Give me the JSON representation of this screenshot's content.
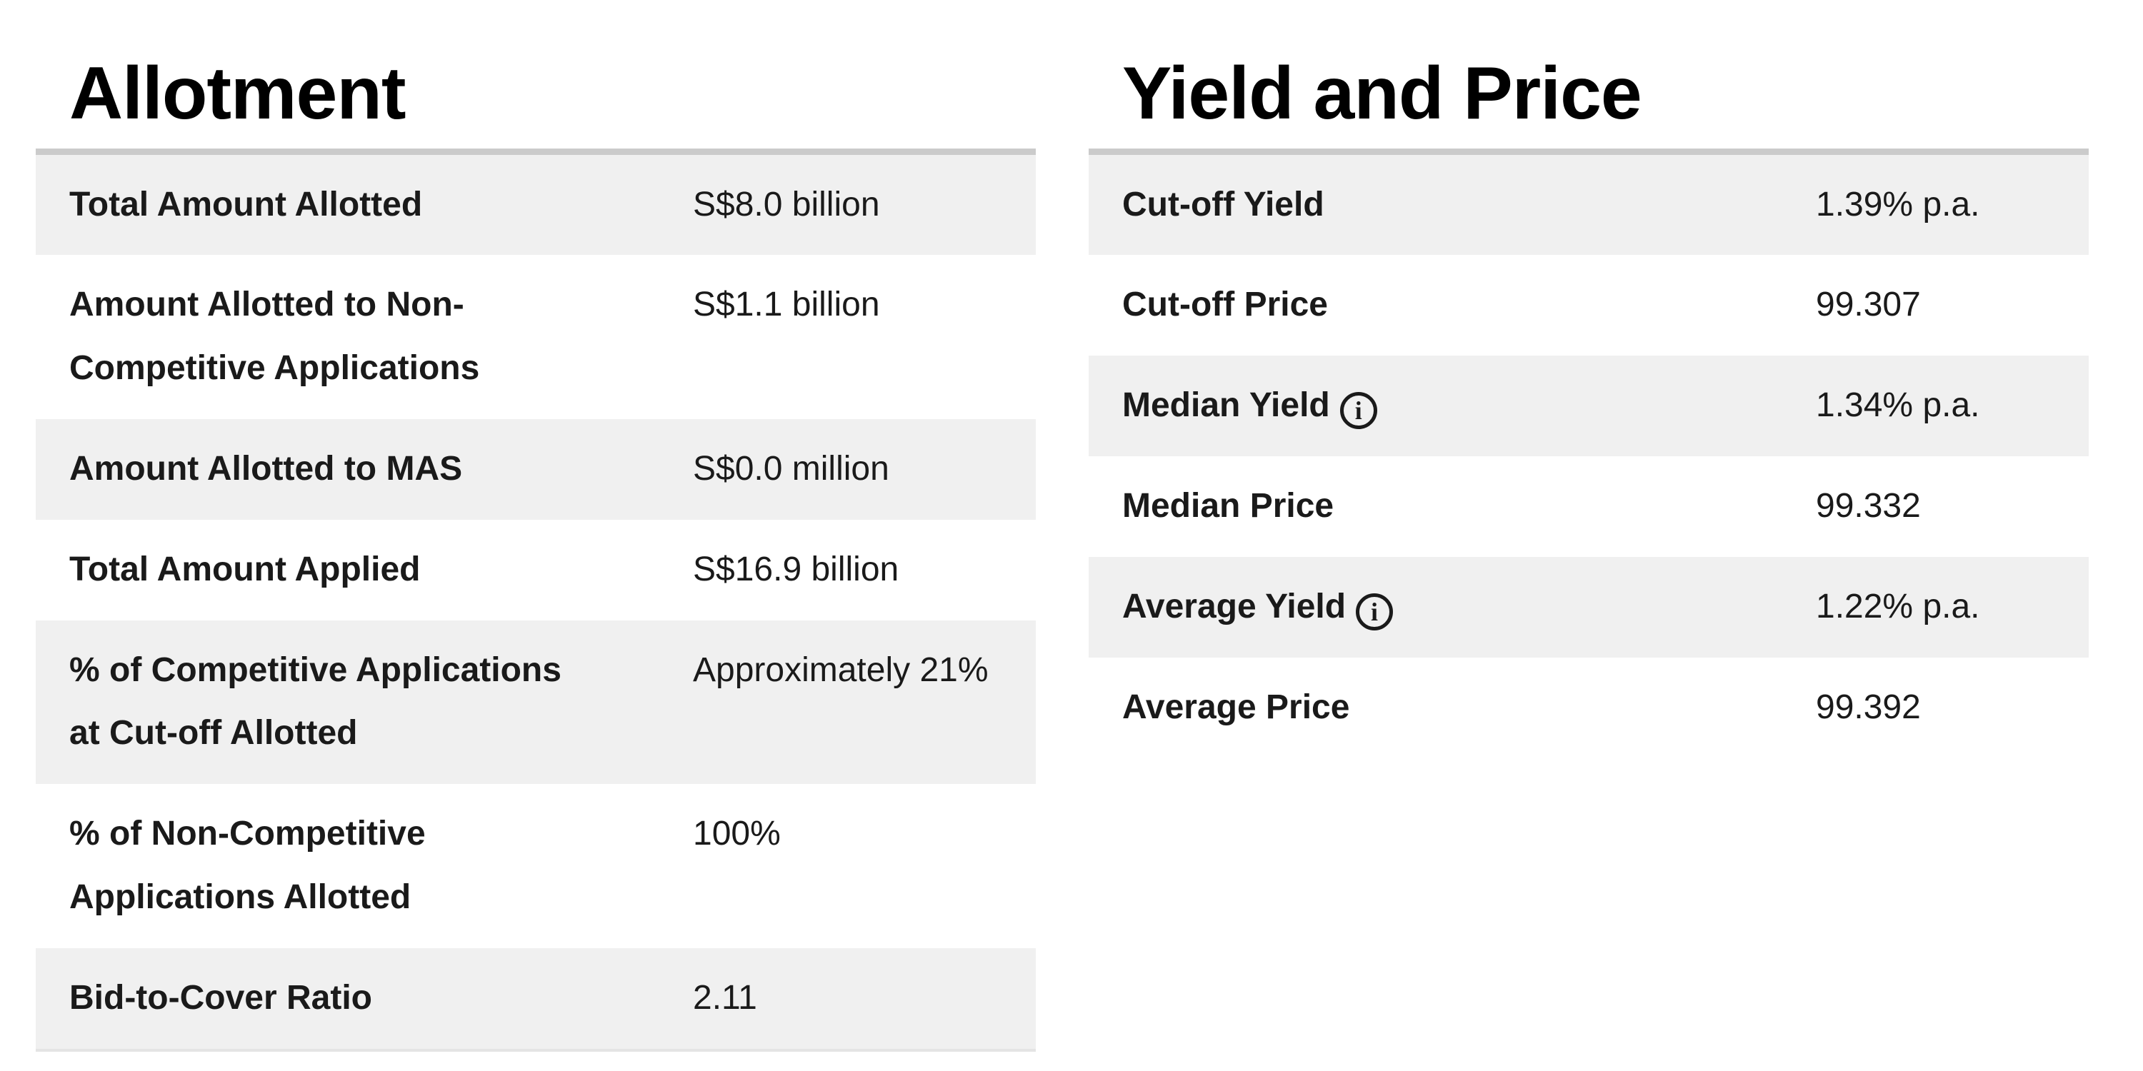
{
  "colors": {
    "row_shaded_bg": "#f0f0f0",
    "table_top_border": "#cbcbcb",
    "table_bottom_border": "#e4e4e4",
    "text": "#1a1a1a"
  },
  "allotment": {
    "title": "Allotment",
    "rows": [
      {
        "label": "Total Amount Allotted",
        "value": "S$8.0 billion",
        "shaded": true
      },
      {
        "label": "Amount Allotted to Non-\nCompetitive Applications",
        "value": "S$1.1 billion",
        "shaded": false
      },
      {
        "label": "Amount Allotted to MAS",
        "value": "S$0.0 million",
        "shaded": true
      },
      {
        "label": "Total Amount Applied",
        "value": "S$16.9 billion",
        "shaded": false
      },
      {
        "label": "% of Competitive Applications\nat Cut-off Allotted",
        "value": "Approximately 21%",
        "shaded": true
      },
      {
        "label": "% of Non-Competitive\nApplications Allotted",
        "value": "100%",
        "shaded": false
      },
      {
        "label": "Bid-to-Cover Ratio",
        "value": "2.11",
        "shaded": true
      }
    ]
  },
  "yield_price": {
    "title": "Yield and Price",
    "info_icon_glyph": "i",
    "rows": [
      {
        "label": "Cut-off Yield",
        "value": "1.39% p.a.",
        "shaded": true,
        "info_icon": false
      },
      {
        "label": "Cut-off Price",
        "value": "99.307",
        "shaded": false,
        "info_icon": false
      },
      {
        "label": "Median Yield",
        "value": "1.34% p.a.",
        "shaded": true,
        "info_icon": true
      },
      {
        "label": "Median Price",
        "value": "99.332",
        "shaded": false,
        "info_icon": false
      },
      {
        "label": "Average Yield",
        "value": "1.22% p.a.",
        "shaded": true,
        "info_icon": true
      },
      {
        "label": "Average Price",
        "value": "99.392",
        "shaded": false,
        "info_icon": false
      }
    ]
  }
}
